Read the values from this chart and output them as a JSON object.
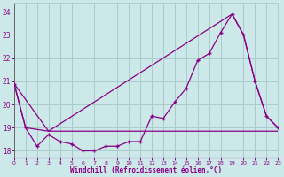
{
  "background_color": "#cce8e8",
  "grid_color": "#aacccc",
  "line_color": "#880088",
  "xlabel": "Windchill (Refroidissement éolien,°C)",
  "xlim": [
    0,
    23
  ],
  "ylim": [
    17.7,
    24.4
  ],
  "yticks": [
    18,
    19,
    20,
    21,
    22,
    23,
    24
  ],
  "xticks": [
    0,
    1,
    2,
    3,
    4,
    5,
    6,
    7,
    8,
    9,
    10,
    11,
    12,
    13,
    14,
    15,
    16,
    17,
    18,
    19,
    20,
    21,
    22,
    23
  ],
  "line1_x": [
    0,
    1,
    2,
    3,
    4,
    5,
    6,
    7,
    8,
    9,
    10,
    11,
    12,
    13,
    14,
    15,
    16,
    17,
    18,
    19,
    20,
    21,
    22,
    23
  ],
  "line1_y": [
    20.9,
    19.0,
    18.2,
    18.7,
    18.4,
    18.3,
    18.0,
    18.0,
    18.2,
    18.2,
    18.4,
    18.4,
    19.5,
    19.4,
    20.1,
    20.7,
    21.9,
    22.2,
    23.1,
    23.9,
    23.0,
    21.0,
    19.5,
    19.0
  ],
  "line2_x": [
    0,
    3,
    19,
    20,
    21,
    22,
    23
  ],
  "line2_y": [
    20.9,
    18.85,
    23.9,
    23.0,
    21.0,
    19.5,
    19.0
  ],
  "line3_x": [
    0,
    1,
    3,
    23
  ],
  "line3_y": [
    20.9,
    19.0,
    18.85,
    18.85
  ]
}
